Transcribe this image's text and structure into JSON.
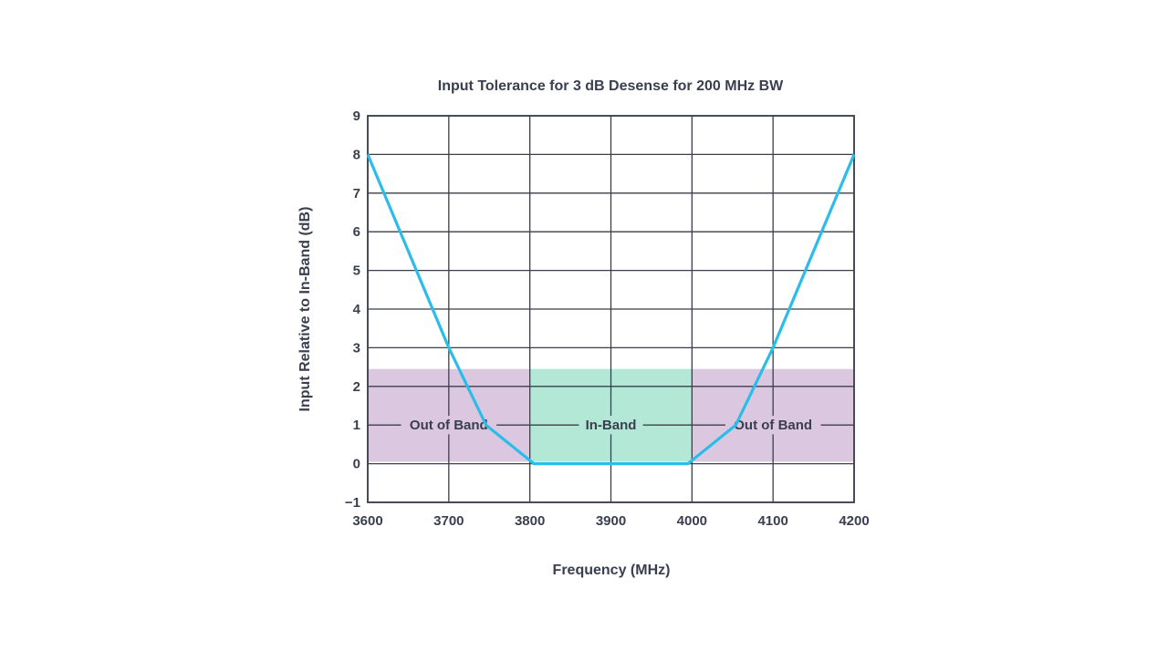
{
  "chart_data": {
    "type": "line",
    "title": "Input Tolerance for 3 dB Desense for 200 MHz BW",
    "xlabel": "Frequency (MHz)",
    "ylabel": "Input Relative to In-Band (dB)",
    "xlim": [
      3600,
      4200
    ],
    "ylim": [
      -1,
      9
    ],
    "xticks": [
      3600,
      3700,
      3800,
      3900,
      4000,
      4100,
      4200
    ],
    "yticks": [
      -1,
      0,
      1,
      2,
      3,
      4,
      5,
      6,
      7,
      8,
      9
    ],
    "grid": true,
    "series": [
      {
        "name": "Input Tolerance",
        "color": "#2bbde9",
        "x": [
          3600,
          3700,
          3746,
          3805,
          3995,
          4054,
          4100,
          4200
        ],
        "y": [
          8,
          3,
          1,
          0,
          0,
          1,
          3,
          8
        ]
      }
    ],
    "regions": [
      {
        "label": "Out of Band",
        "x": [
          3600,
          3800
        ],
        "y": [
          0.05,
          2.45
        ],
        "color": "#dcc7e1"
      },
      {
        "label": "In-Band",
        "x": [
          3800,
          4000
        ],
        "y": [
          0.05,
          2.45
        ],
        "color": "#b3e8d7"
      },
      {
        "label": "Out of Band",
        "x": [
          4000,
          4200
        ],
        "y": [
          0.05,
          2.45
        ],
        "color": "#dcc7e1"
      }
    ],
    "region_label_y": 1
  }
}
